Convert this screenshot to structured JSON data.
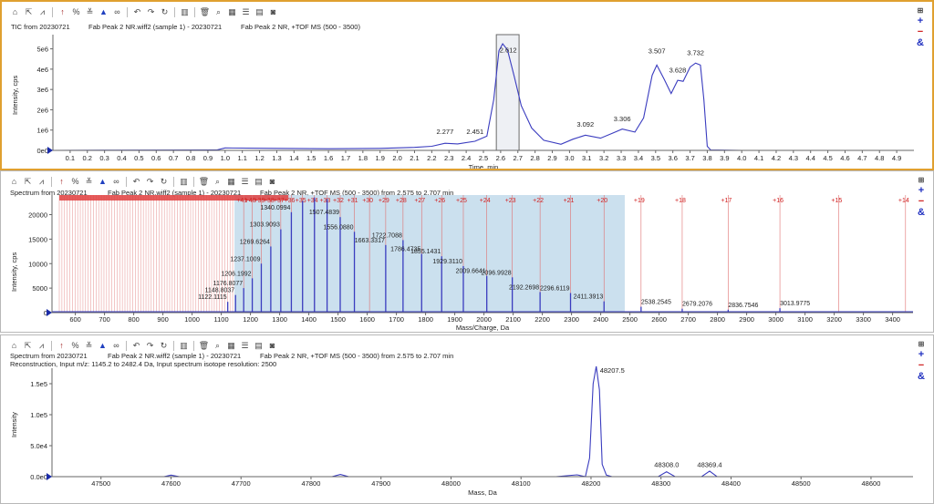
{
  "toolbar_icons": [
    "home-icon",
    "zoom-out-icon",
    "peaks-icon",
    "arrow-up-icon",
    "percent-icon",
    "baseline-icon",
    "peak-triangle-icon",
    "link-icon",
    "undo-icon",
    "redo-icon",
    "redo-alt-icon",
    "bar-chart-icon",
    "delete-icon",
    "magnify-icon",
    "table-icon",
    "list-icon",
    "grid-icon",
    "camera-icon"
  ],
  "side": {
    "pin": "⊞",
    "plus": "+",
    "minus": "−",
    "amp": "&"
  },
  "pane1": {
    "title_left": "TIC from 20230721",
    "title_mid": "Fab Peak 2 NR.wiff2 (sample 1) - 20230721",
    "title_right": "Fab Peak 2 NR, +TOF MS (500 - 3500)",
    "ylabel": "Intensity, cps",
    "xlabel": "Time, min",
    "yticks": [
      "0e0",
      "1e6",
      "2e6",
      "3e6",
      "4e6",
      "5e6"
    ],
    "xticks": [
      "0.1",
      "0.2",
      "0.3",
      "0.4",
      "0.5",
      "0.6",
      "0.7",
      "0.8",
      "0.9",
      "1.0",
      "1.1",
      "1.2",
      "1.3",
      "1.4",
      "1.5",
      "1.6",
      "1.7",
      "1.8",
      "1.9",
      "2.0",
      "2.1",
      "2.2",
      "2.3",
      "2.4",
      "2.5",
      "2.6",
      "2.7",
      "2.8",
      "2.9",
      "3.0",
      "3.1",
      "3.2",
      "3.3",
      "3.4",
      "3.5",
      "3.6",
      "3.7",
      "3.8",
      "3.9",
      "4.0",
      "4.1",
      "4.2",
      "4.3",
      "4.4",
      "4.5",
      "4.6",
      "4.7",
      "4.8",
      "4.9"
    ],
    "peak_labels": [
      {
        "x": 2.277,
        "y": 620000.0,
        "t": "2.277"
      },
      {
        "x": 2.451,
        "y": 620000.0,
        "t": "2.451"
      },
      {
        "x": 2.612,
        "y": 4650000.0,
        "t": "2.612"
      },
      {
        "x": 3.092,
        "y": 980000.0,
        "t": "3.092"
      },
      {
        "x": 3.306,
        "y": 1250000.0,
        "t": "3.306"
      },
      {
        "x": 3.507,
        "y": 4600000.0,
        "t": "3.507"
      },
      {
        "x": 3.628,
        "y": 3650000.0,
        "t": "3.628"
      },
      {
        "x": 3.732,
        "y": 4500000.0,
        "t": "3.732"
      }
    ],
    "selection": {
      "x0": 2.575,
      "x1": 2.707
    }
  },
  "pane2": {
    "title_left": "Spectrum from 20230721",
    "title_mid": "Fab Peak 2 NR.wiff2 (sample 1) - 20230721",
    "title_right": "Fab Peak 2 NR, +TOF MS (500 - 3500) from 2.575 to 2.707 min",
    "ylabel": "Intensity, cps",
    "xlabel": "Mass/Charge, Da",
    "yticks": [
      "0",
      "5000",
      "10000",
      "15000",
      "20000"
    ],
    "xticks": [
      "600",
      "700",
      "800",
      "900",
      "1000",
      "1100",
      "1200",
      "1300",
      "1400",
      "1500",
      "1600",
      "1700",
      "1800",
      "1900",
      "2000",
      "2100",
      "2200",
      "2300",
      "2400",
      "2500",
      "2600",
      "2700",
      "2800",
      "2900",
      "3000",
      "3100",
      "3200",
      "3300",
      "3400"
    ],
    "charge_labels": [
      "+41",
      "+40",
      "+39",
      "+38",
      "+37",
      "+36",
      "+35",
      "+34",
      "+33",
      "+32",
      "+31",
      "+30",
      "+29",
      "+28",
      "+27",
      "+26",
      "+25",
      "+24",
      "+23",
      "+22",
      "+21",
      "+20",
      "+19",
      "+18",
      "+17",
      "+16",
      "+15",
      "+14"
    ],
    "peaks": [
      {
        "mz": 1122.1115,
        "i": 2200,
        "t": "1122.1115"
      },
      {
        "mz": 1148.8037,
        "i": 3600,
        "t": "1148.8037"
      },
      {
        "mz": 1176.8077,
        "i": 5000,
        "t": "1176.8077"
      },
      {
        "mz": 1206.1992,
        "i": 7000,
        "t": "1206.1992"
      },
      {
        "mz": 1237.1009,
        "i": 10000,
        "t": "1237.1009"
      },
      {
        "mz": 1269.6264,
        "i": 13500,
        "t": "1269.6264"
      },
      {
        "mz": 1303.9093,
        "i": 17000,
        "t": "1303.9093"
      },
      {
        "mz": 1340.0994,
        "i": 20500,
        "t": "1340.0994"
      },
      {
        "mz": 1378.5,
        "i": 22800,
        "t": ""
      },
      {
        "mz": 1419.3,
        "i": 23500,
        "t": ""
      },
      {
        "mz": 1462.5,
        "i": 23200,
        "t": ""
      },
      {
        "mz": 1507.4839,
        "i": 19500,
        "t": "1507.4839"
      },
      {
        "mz": 1556.088,
        "i": 16500,
        "t": "1556.0880"
      },
      {
        "mz": 1663.3317,
        "i": 13800,
        "t": "1663.3317"
      },
      {
        "mz": 1722.7088,
        "i": 14800,
        "t": "1722.7088"
      },
      {
        "mz": 1786.4735,
        "i": 12000,
        "t": "1786.4735"
      },
      {
        "mz": 1855.1431,
        "i": 11500,
        "t": "1855.1431"
      },
      {
        "mz": 1929.311,
        "i": 9500,
        "t": "1929.3110"
      },
      {
        "mz": 2009.6641,
        "i": 7500,
        "t": "2009.6641"
      },
      {
        "mz": 2096.9928,
        "i": 7200,
        "t": "2096.9928"
      },
      {
        "mz": 2192.2698,
        "i": 4200,
        "t": "2192.2698"
      },
      {
        "mz": 2296.6119,
        "i": 4000,
        "t": "2296.6119"
      },
      {
        "mz": 2411.3913,
        "i": 2300,
        "t": "2411.3913"
      },
      {
        "mz": 2538.2545,
        "i": 1200,
        "t": "2538.2545"
      },
      {
        "mz": 2679.2076,
        "i": 800,
        "t": "2679.2076"
      },
      {
        "mz": 2836.7546,
        "i": 600,
        "t": "2836.7546"
      },
      {
        "mz": 3013.9775,
        "i": 900,
        "t": "3013.9775"
      }
    ],
    "highlight": {
      "x0": 1145.2,
      "x1": 2482.4
    }
  },
  "pane3": {
    "title_left": "Spectrum from 20230721",
    "title_mid": "Fab Peak 2 NR.wiff2 (sample 1) - 20230721",
    "title_right": "Fab Peak 2 NR, +TOF MS (500 - 3500) from 2.575 to 2.707 min",
    "line2": "Reconstruction,  Input m/z: 1145.2 to 2482.4 Da, Input spectrum isotope resolution: 2500",
    "ylabel": "Intensity",
    "xlabel": "Mass, Da",
    "yticks": [
      "0.0e0",
      "5.0e4",
      "1.0e5",
      "1.5e5"
    ],
    "xticks": [
      "47500",
      "47600",
      "47700",
      "47800",
      "47900",
      "48000",
      "48100",
      "48200",
      "48300",
      "48400",
      "48500",
      "48600"
    ],
    "peak_labels": [
      {
        "x": 48207.5,
        "y": 175000,
        "t": "48207.5"
      },
      {
        "x": 48308.0,
        "y": 11000,
        "t": "48308.0"
      },
      {
        "x": 48369.4,
        "y": 11000,
        "t": "48369.4"
      }
    ]
  }
}
